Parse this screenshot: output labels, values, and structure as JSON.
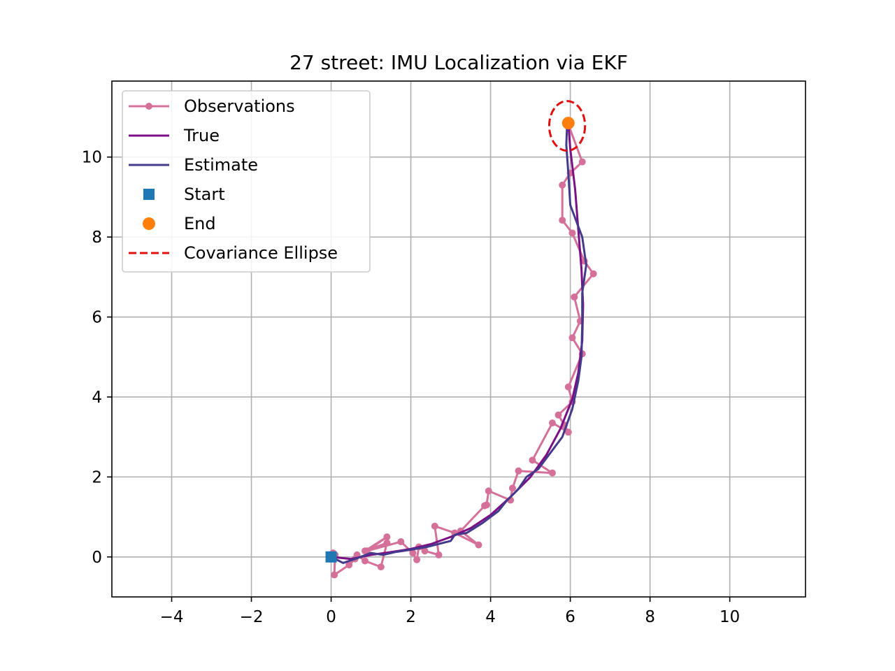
{
  "chart_data": {
    "type": "line",
    "title": "27 street: IMU Localization via EKF",
    "xlabel": "",
    "ylabel": "",
    "xlim": [
      -5.5,
      11.9
    ],
    "ylim": [
      -1.0,
      11.9
    ],
    "xticks": [
      -4,
      -2,
      0,
      2,
      4,
      6,
      8,
      10
    ],
    "yticks": [
      0,
      2,
      4,
      6,
      8,
      10
    ],
    "xtick_labels": [
      "−4",
      "−2",
      "0",
      "2",
      "4",
      "6",
      "8",
      "10"
    ],
    "ytick_labels": [
      "0",
      "2",
      "4",
      "6",
      "8",
      "10"
    ],
    "grid": true,
    "legend_position": "upper-left",
    "colors": {
      "observations": "#d4709a",
      "true": "#7b0f86",
      "estimate": "#433a8c",
      "start": "#1f77b4",
      "end": "#ff7f0e",
      "ellipse": "#e01010"
    },
    "series": [
      {
        "name": "Observations",
        "style": "line-with-markers",
        "points": [
          [
            0.05,
            0.1
          ],
          [
            0.1,
            0.05
          ],
          [
            0.08,
            -0.45
          ],
          [
            0.45,
            -0.2
          ],
          [
            0.6,
            -0.05
          ],
          [
            0.65,
            0.05
          ],
          [
            0.85,
            -0.1
          ],
          [
            1.25,
            -0.25
          ],
          [
            1.4,
            0.35
          ],
          [
            0.85,
            0.15
          ],
          [
            1.4,
            0.5
          ],
          [
            0.9,
            0.15
          ],
          [
            1.75,
            0.38
          ],
          [
            2.05,
            0.1
          ],
          [
            2.15,
            -0.07
          ],
          [
            2.2,
            0.25
          ],
          [
            2.35,
            0.15
          ],
          [
            2.7,
            0.05
          ],
          [
            2.6,
            0.77
          ],
          [
            3.1,
            0.6
          ],
          [
            3.7,
            0.3
          ],
          [
            3.25,
            0.65
          ],
          [
            3.85,
            1.28
          ],
          [
            3.9,
            1.3
          ],
          [
            3.95,
            1.65
          ],
          [
            4.5,
            1.42
          ],
          [
            4.55,
            1.72
          ],
          [
            4.7,
            2.15
          ],
          [
            5.55,
            2.1
          ],
          [
            5.05,
            2.42
          ],
          [
            5.55,
            3.35
          ],
          [
            5.95,
            3.12
          ],
          [
            5.85,
            3.3
          ],
          [
            5.7,
            3.55
          ],
          [
            6.05,
            3.88
          ],
          [
            5.95,
            4.25
          ],
          [
            6.3,
            5.08
          ],
          [
            6.05,
            5.48
          ],
          [
            6.25,
            5.9
          ],
          [
            6.1,
            6.5
          ],
          [
            6.58,
            7.08
          ],
          [
            6.35,
            7.4
          ],
          [
            6.05,
            8.1
          ],
          [
            5.8,
            8.42
          ],
          [
            5.8,
            9.3
          ],
          [
            6.0,
            9.6
          ],
          [
            6.3,
            9.88
          ],
          [
            5.95,
            10.82
          ]
        ]
      },
      {
        "name": "True",
        "style": "line",
        "points": [
          [
            0.0,
            0.0
          ],
          [
            0.5,
            -0.05
          ],
          [
            1.0,
            0.05
          ],
          [
            1.5,
            0.12
          ],
          [
            2.0,
            0.2
          ],
          [
            2.5,
            0.32
          ],
          [
            3.0,
            0.5
          ],
          [
            3.5,
            0.72
          ],
          [
            4.0,
            1.05
          ],
          [
            4.5,
            1.5
          ],
          [
            5.0,
            2.0
          ],
          [
            5.4,
            2.55
          ],
          [
            5.75,
            3.2
          ],
          [
            6.05,
            3.95
          ],
          [
            6.2,
            4.6
          ],
          [
            6.3,
            5.4
          ],
          [
            6.32,
            6.3
          ],
          [
            6.28,
            7.2
          ],
          [
            6.2,
            8.2
          ],
          [
            6.12,
            9.2
          ],
          [
            6.0,
            10.2
          ],
          [
            5.95,
            10.85
          ]
        ]
      },
      {
        "name": "Estimate",
        "style": "line",
        "points": [
          [
            0.0,
            0.0
          ],
          [
            0.3,
            -0.15
          ],
          [
            0.6,
            -0.05
          ],
          [
            1.0,
            0.1
          ],
          [
            1.3,
            0.05
          ],
          [
            1.6,
            0.12
          ],
          [
            2.0,
            0.18
          ],
          [
            2.4,
            0.25
          ],
          [
            3.0,
            0.4
          ],
          [
            3.1,
            0.55
          ],
          [
            3.4,
            0.6
          ],
          [
            3.8,
            0.85
          ],
          [
            4.2,
            1.15
          ],
          [
            4.4,
            1.4
          ],
          [
            4.7,
            1.7
          ],
          [
            4.9,
            2.0
          ],
          [
            5.2,
            2.2
          ],
          [
            5.5,
            2.6
          ],
          [
            5.8,
            3.0
          ],
          [
            6.05,
            3.7
          ],
          [
            6.2,
            4.4
          ],
          [
            6.28,
            5.0
          ],
          [
            6.3,
            5.8
          ],
          [
            6.3,
            6.6
          ],
          [
            6.4,
            7.3
          ],
          [
            6.3,
            8.0
          ],
          [
            6.0,
            8.8
          ],
          [
            5.95,
            9.6
          ],
          [
            5.9,
            10.3
          ],
          [
            5.92,
            10.85
          ]
        ]
      },
      {
        "name": "Start",
        "style": "square-marker",
        "points": [
          [
            0.0,
            0.0
          ]
        ]
      },
      {
        "name": "End",
        "style": "circle-marker",
        "points": [
          [
            5.95,
            10.85
          ]
        ]
      },
      {
        "name": "Covariance Ellipse",
        "style": "dashed-ellipse",
        "center": [
          5.92,
          10.78
        ],
        "radius_x": 0.45,
        "radius_y": 0.62
      }
    ]
  }
}
